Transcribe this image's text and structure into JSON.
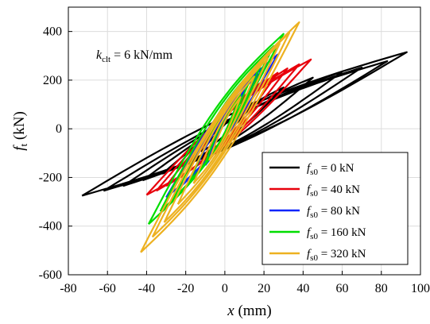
{
  "chart_data": {
    "type": "line",
    "title": "",
    "xlabel": "x (mm)",
    "ylabel": "f_t (kN)",
    "xlim": [
      -80,
      100
    ],
    "ylim": [
      -600,
      500
    ],
    "xticks": [
      -80,
      -60,
      -40,
      -20,
      0,
      20,
      40,
      60,
      80,
      100
    ],
    "yticks": [
      -600,
      -400,
      -200,
      0,
      200,
      400
    ],
    "grid": true,
    "legend_position": "bottom-right",
    "annotation": "k_clt = 6 kN/mm",
    "series": [
      {
        "name": "f_s0 = 0 kN",
        "color": "#000000",
        "cycles": [
          {
            "x_min": -73,
            "y_min": -275,
            "x_max": 93,
            "y_max": 315
          },
          {
            "x_min": -62,
            "y_min": -255,
            "x_max": 83,
            "y_max": 278
          },
          {
            "x_min": -52,
            "y_min": -235,
            "x_max": 70,
            "y_max": 252
          },
          {
            "x_min": -42,
            "y_min": -212,
            "x_max": 60,
            "y_max": 235
          },
          {
            "x_min": -32,
            "y_min": -185,
            "x_max": 45,
            "y_max": 210
          },
          {
            "x_min": -22,
            "y_min": -150,
            "x_max": 30,
            "y_max": 170
          },
          {
            "x_min": -12,
            "y_min": -95,
            "x_max": 15,
            "y_max": 110
          }
        ]
      },
      {
        "name": "f_s0 = 40 kN",
        "color": "#e8000b",
        "cycles": [
          {
            "x_min": -40,
            "y_min": -272,
            "x_max": 44,
            "y_max": 285
          },
          {
            "x_min": -35,
            "y_min": -255,
            "x_max": 38,
            "y_max": 265
          },
          {
            "x_min": -30,
            "y_min": -235,
            "x_max": 32,
            "y_max": 248
          },
          {
            "x_min": -25,
            "y_min": -212,
            "x_max": 27,
            "y_max": 230
          },
          {
            "x_min": -20,
            "y_min": -185,
            "x_max": 20,
            "y_max": 200
          },
          {
            "x_min": -12,
            "y_min": -140,
            "x_max": 12,
            "y_max": 150
          }
        ]
      },
      {
        "name": "f_s0 = 80 kN",
        "color": "#0b24fb",
        "cycles": [
          {
            "x_min": -30,
            "y_min": -282,
            "x_max": 27,
            "y_max": 305
          },
          {
            "x_min": -25,
            "y_min": -255,
            "x_max": 22,
            "y_max": 270
          },
          {
            "x_min": -18,
            "y_min": -212,
            "x_max": 17,
            "y_max": 225
          },
          {
            "x_min": -10,
            "y_min": -150,
            "x_max": 10,
            "y_max": 160
          }
        ]
      },
      {
        "name": "f_s0 = 160 kN",
        "color": "#00dd00",
        "cycles": [
          {
            "x_min": -39,
            "y_min": -392,
            "x_max": 30,
            "y_max": 390
          },
          {
            "x_min": -33,
            "y_min": -340,
            "x_max": 25,
            "y_max": 340
          },
          {
            "x_min": -26,
            "y_min": -285,
            "x_max": 20,
            "y_max": 288
          },
          {
            "x_min": -18,
            "y_min": -215,
            "x_max": 14,
            "y_max": 220
          },
          {
            "x_min": -10,
            "y_min": -140,
            "x_max": 8,
            "y_max": 140
          }
        ]
      },
      {
        "name": "f_s0 = 320 kN",
        "color": "#edb120",
        "cycles": [
          {
            "x_min": -43,
            "y_min": -508,
            "x_max": 38,
            "y_max": 438
          },
          {
            "x_min": -37,
            "y_min": -445,
            "x_max": 33,
            "y_max": 395
          },
          {
            "x_min": -31,
            "y_min": -385,
            "x_max": 28,
            "y_max": 350
          },
          {
            "x_min": -24,
            "y_min": -310,
            "x_max": 22,
            "y_max": 290
          },
          {
            "x_min": -16,
            "y_min": -225,
            "x_max": 15,
            "y_max": 215
          },
          {
            "x_min": -8,
            "y_min": -130,
            "x_max": 8,
            "y_max": 130
          }
        ]
      }
    ]
  }
}
